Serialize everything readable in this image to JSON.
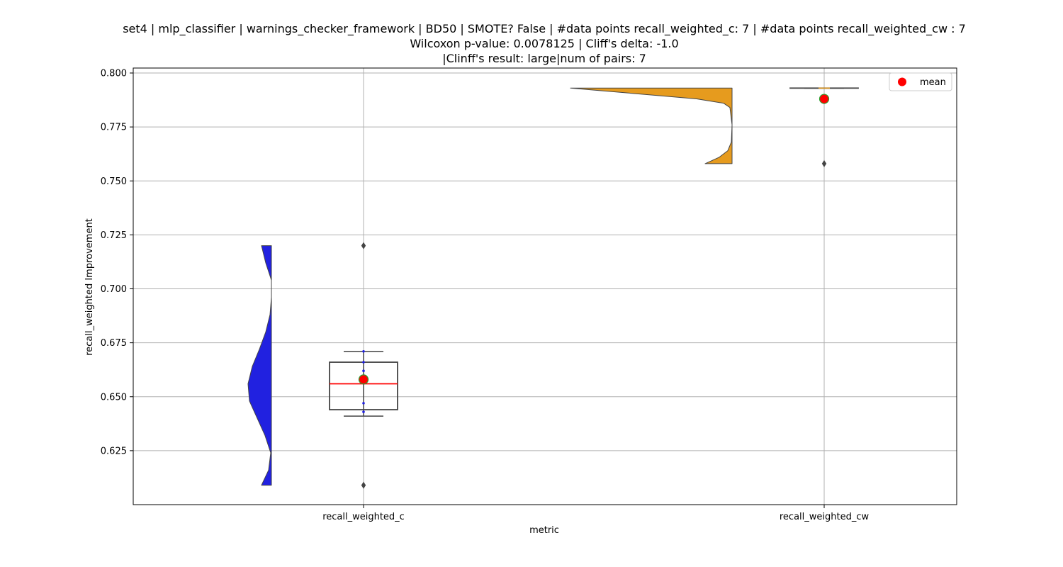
{
  "chart_data": {
    "type": "violin+box",
    "title_lines": [
      "set4 | mlp_classifier | warnings_checker_framework | BD50 | SMOTE? False | #data points recall_weighted_c: 7 | #data points recall_weighted_cw : 7",
      "Wilcoxon p-value: 0.0078125 | Cliff's delta: -1.0",
      "|Clinff's result: large|num of pairs: 7"
    ],
    "xlabel": "metric",
    "ylabel": "recall_weighted Improvement",
    "ylim": [
      0.6,
      0.802
    ],
    "yticks": [
      "0.625",
      "0.650",
      "0.675",
      "0.700",
      "0.725",
      "0.750",
      "0.775",
      "0.800"
    ],
    "categories": [
      "recall_weighted_c",
      "recall_weighted_cw"
    ],
    "grid": true,
    "legend": {
      "position": "top-right",
      "entries": [
        {
          "label": "mean",
          "color": "#ff0000"
        }
      ]
    },
    "series": [
      {
        "category": "recall_weighted_c",
        "violin_color": "#2121e0",
        "violin_range": [
          0.609,
          0.72
        ],
        "box": {
          "whisker_low": 0.641,
          "q1": 0.644,
          "median": 0.656,
          "q3": 0.666,
          "whisker_high": 0.671
        },
        "mean": 0.658,
        "outliers": [
          0.72,
          0.609
        ],
        "points": [
          0.662,
          0.647,
          0.643,
          0.671,
          0.666
        ]
      },
      {
        "category": "recall_weighted_cw",
        "violin_color": "#e69b1e",
        "violin_range": [
          0.758,
          0.793
        ],
        "box": {
          "whisker_low": 0.793,
          "q1": 0.793,
          "median": 0.793,
          "q3": 0.793,
          "whisker_high": 0.793
        },
        "mean": 0.788,
        "outliers": [
          0.758
        ],
        "points": []
      }
    ]
  }
}
